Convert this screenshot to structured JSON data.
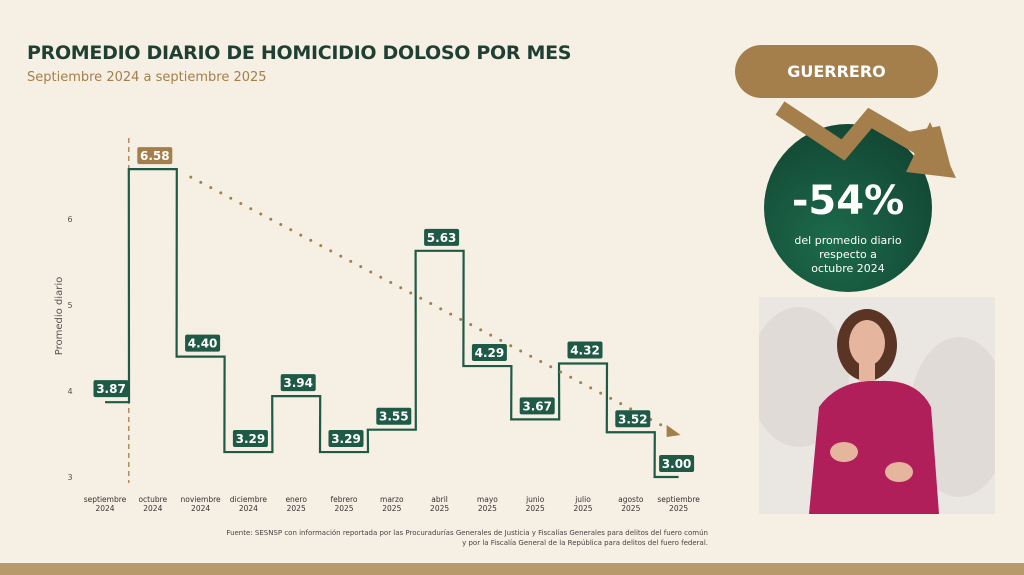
{
  "header": {
    "title": "PROMEDIO DIARIO DE HOMICIDIO DOLOSO POR MES",
    "subtitle": "Septiembre 2024 a septiembre 2025"
  },
  "badge": {
    "state": "GUERRERO",
    "change": "-54%",
    "description_lines": [
      "del promedio diario",
      "respecto a",
      "octubre 2024"
    ]
  },
  "source": {
    "line1": "Fuente: SESNSP con información reportada por las Procuradurías Generales de Justicia y Fiscalías Generales para delitos del fuero común",
    "line2": "y por la Fiscalía General de la República para delitos del fuero federal."
  },
  "colors": {
    "green": "#1e5a45",
    "gold": "#a57f4b",
    "background": "#f6efe4"
  },
  "chart_data": {
    "type": "line",
    "subtype": "step",
    "title": "PROMEDIO DIARIO DE HOMICIDIO DOLOSO POR MES",
    "ylabel": "Promedio diario",
    "xlabel": "",
    "ylim": [
      2.9,
      6.9
    ],
    "yticks": [
      3,
      4,
      5,
      6
    ],
    "grid": false,
    "categories": [
      [
        "septiembre",
        "2024"
      ],
      [
        "octubre",
        "2024"
      ],
      [
        "noviembre",
        "2024"
      ],
      [
        "diciembre",
        "2024"
      ],
      [
        "enero",
        "2025"
      ],
      [
        "febrero",
        "2025"
      ],
      [
        "marzo",
        "2025"
      ],
      [
        "abril",
        "2025"
      ],
      [
        "mayo",
        "2025"
      ],
      [
        "junio",
        "2025"
      ],
      [
        "julio",
        "2025"
      ],
      [
        "agosto",
        "2025"
      ],
      [
        "septiembre",
        "2025"
      ]
    ],
    "values": [
      3.87,
      6.58,
      4.4,
      3.29,
      3.94,
      3.29,
      3.55,
      5.63,
      4.29,
      3.67,
      4.32,
      3.52,
      3.0
    ],
    "labels": [
      "3.87",
      "6.58",
      "4.40",
      "3.29",
      "3.94",
      "3.29",
      "3.55",
      "5.63",
      "4.29",
      "3.67",
      "4.32",
      "3.52",
      "3.00"
    ],
    "highlight_index": 1,
    "trend": {
      "from_index": 1,
      "to_index": 12,
      "style": "dotted-arrow"
    },
    "reference_line_index": 1
  }
}
